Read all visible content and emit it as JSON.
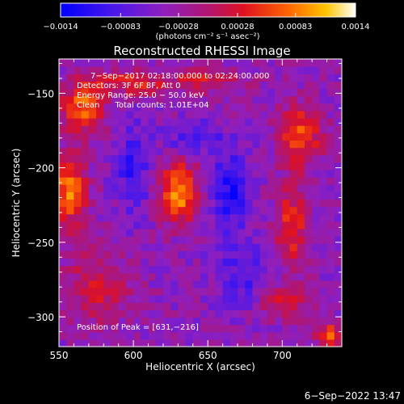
{
  "chart_data": {
    "type": "heatmap",
    "title": "Reconstructed RHESSI Image",
    "xlabel": "Heliocentric X (arcsec)",
    "ylabel": "Heliocentric Y (arcsec)",
    "xlim": [
      550,
      740
    ],
    "ylim": [
      -320,
      -127
    ],
    "x_ticks": [
      550,
      600,
      650,
      700
    ],
    "x_tick_labels": [
      "550",
      "600",
      "650",
      "700"
    ],
    "y_ticks": [
      -150,
      -200,
      -250,
      -300
    ],
    "y_tick_labels": [
      "−150",
      "−200",
      "−250",
      "−300"
    ],
    "colorbar": {
      "range": [
        -0.0014,
        0.0014
      ],
      "tick_values": [
        -0.0014,
        -0.00083,
        -0.00028,
        0.00028,
        0.00083,
        0.0014
      ],
      "tick_labels": [
        "−0.0014",
        "−0.00083",
        "−0.00028",
        "0.00028",
        "0.00083",
        "0.0014"
      ],
      "units_label": "(photons cm⁻² s⁻¹ asec⁻²)"
    },
    "annotations": [
      "7−Sep−2017 02:18:00.000 to 02:24:00.000",
      "Detectors: 3F 6F 8F, Att 0",
      "Energy Range: 25.0 − 50.0 keV",
      "Clean      Total counts: 1.01E+04"
    ],
    "peak_label": "Position of Peak = [631,−216]",
    "peak": [
      631,
      -216
    ],
    "sources": [
      {
        "x": 631,
        "y": -216,
        "amp": 0.00135,
        "sx": 9,
        "sy": 14
      },
      {
        "x": 557,
        "y": -215,
        "amp": 0.0013,
        "sx": 8,
        "sy": 16
      },
      {
        "x": 566,
        "y": -158,
        "amp": 0.00115,
        "sx": 10,
        "sy": 12
      },
      {
        "x": 712,
        "y": -178,
        "amp": 0.00105,
        "sx": 10,
        "sy": 14
      },
      {
        "x": 706,
        "y": -240,
        "amp": 0.0009,
        "sx": 7,
        "sy": 20
      },
      {
        "x": 700,
        "y": -290,
        "amp": 0.0007,
        "sx": 10,
        "sy": 8
      },
      {
        "x": 732,
        "y": -313,
        "amp": 0.0011,
        "sx": 6,
        "sy": 6
      },
      {
        "x": 600,
        "y": -143,
        "amp": 0.0008,
        "sx": 18,
        "sy": 6
      },
      {
        "x": 650,
        "y": -140,
        "amp": 0.0006,
        "sx": 18,
        "sy": 6
      },
      {
        "x": 575,
        "y": -280,
        "amp": 0.0006,
        "sx": 16,
        "sy": 18
      },
      {
        "x": 600,
        "y": -200,
        "amp": -0.0006,
        "sx": 8,
        "sy": 22
      },
      {
        "x": 665,
        "y": -215,
        "amp": -0.0008,
        "sx": 8,
        "sy": 18
      },
      {
        "x": 675,
        "y": -270,
        "amp": -0.0005,
        "sx": 14,
        "sy": 14
      },
      {
        "x": 640,
        "y": -180,
        "amp": -0.0005,
        "sx": 14,
        "sy": 8
      }
    ],
    "background": -0.0004,
    "grid": false,
    "legend": "none"
  },
  "footer": {
    "timestamp": "6−Sep−2022 13:47"
  }
}
